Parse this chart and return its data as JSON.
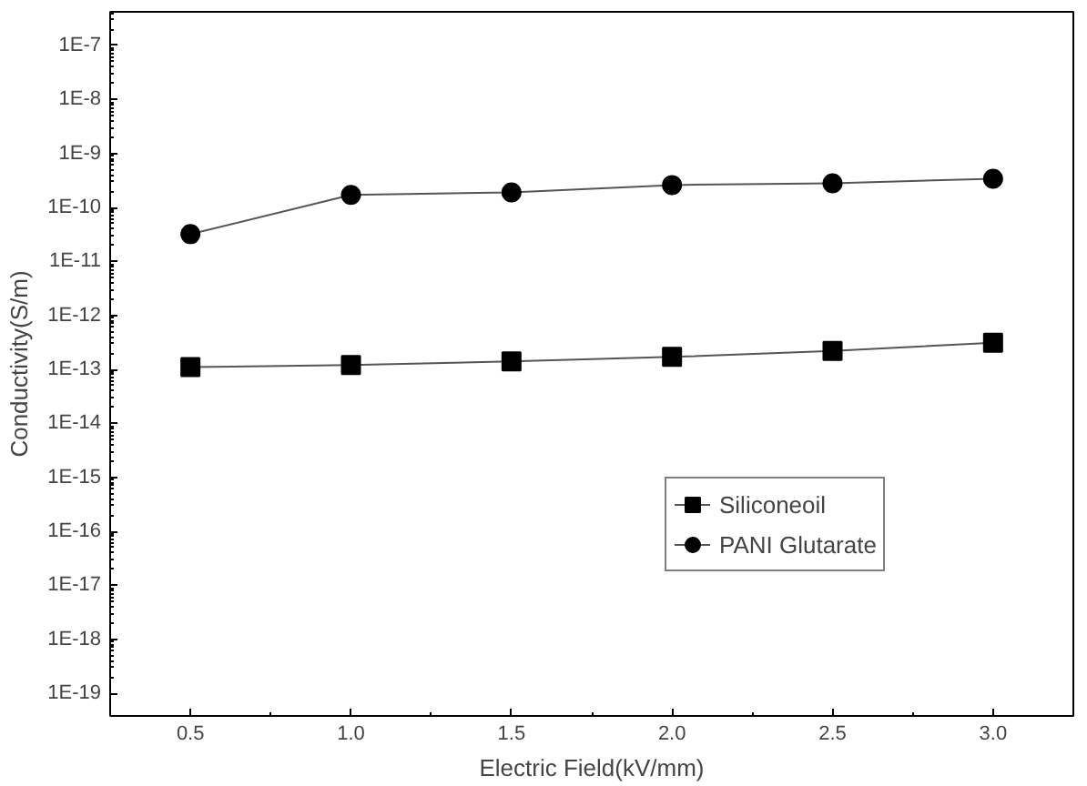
{
  "chart_data": {
    "type": "line",
    "xlabel": "Electric Field(kV/mm)",
    "ylabel": "Conductivity(S/m)",
    "x": [
      0.5,
      1.0,
      1.5,
      2.0,
      2.5,
      3.0
    ],
    "series": [
      {
        "name": "Siliconeoil",
        "color": "#000000",
        "marker": "square",
        "values": [
          1.1e-13,
          1.2e-13,
          1.4e-13,
          1.7e-13,
          2.2e-13,
          3.1e-13
        ]
      },
      {
        "name": "PANI Glutarate",
        "color": "#000000",
        "marker": "circle",
        "values": [
          3.2e-11,
          1.7e-10,
          1.9e-10,
          2.6e-10,
          2.8e-10,
          3.4e-10
        ]
      }
    ],
    "log": "y",
    "xlim": [
      0.25,
      3.25
    ],
    "ylim": [
      3.8e-20,
      4.2e-07
    ],
    "xticks": [
      0.5,
      {
        "value": 1,
        "label": "1.0"
      },
      1.5,
      {
        "value": 2,
        "label": "2.0"
      },
      2.5,
      {
        "value": 3,
        "label": "3.0"
      }
    ],
    "yticks": [
      {
        "value": 1e-19,
        "label": "1E-19"
      },
      {
        "value": 1e-18,
        "label": "1E-18"
      },
      {
        "value": 1e-17,
        "label": "1E-17"
      },
      {
        "value": 1e-16,
        "label": "1E-16"
      },
      {
        "value": 1e-15,
        "label": "1E-15"
      },
      {
        "value": 1e-14,
        "label": "1E-14"
      },
      {
        "value": 1e-13,
        "label": "1E-13"
      },
      {
        "value": 1e-12,
        "label": "1E-12"
      },
      {
        "value": 1e-11,
        "label": "1E-11"
      },
      {
        "value": 1e-10,
        "label": "1E-10"
      },
      {
        "value": 1e-09,
        "label": "1E-9"
      },
      {
        "value": 1e-08,
        "label": "1E-8"
      },
      {
        "value": 1e-07,
        "label": "1E-7"
      }
    ],
    "grid": false,
    "legend": "right",
    "line_style": "solid"
  }
}
